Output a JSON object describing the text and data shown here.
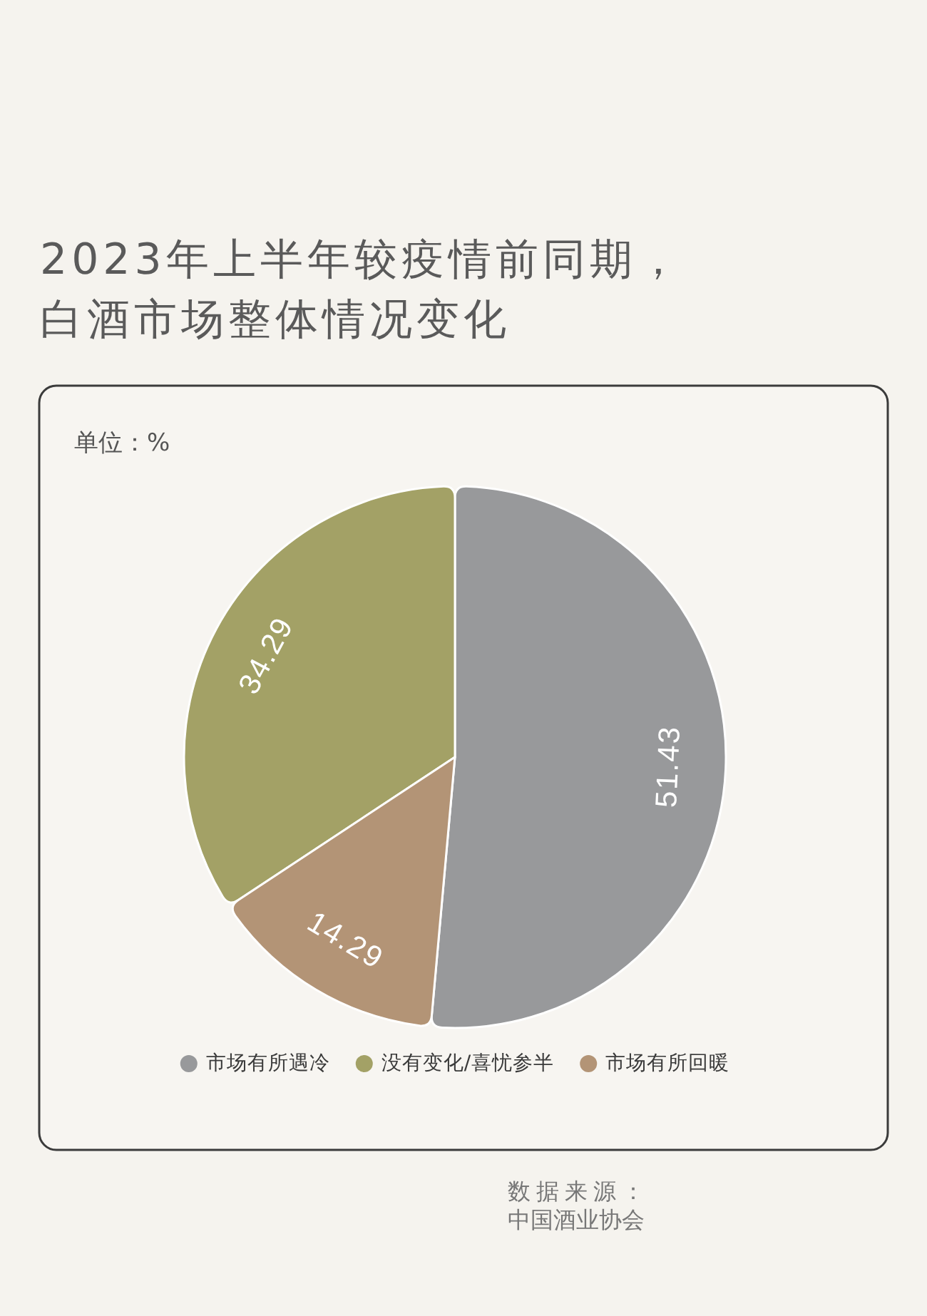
{
  "chart_data": {
    "type": "pie",
    "title": "2023年上半年较疫情前同期，白酒市场整体情况变化",
    "categories": [
      "市场有所遇冷",
      "没有变化/喜忧参半",
      "市场有所回暖"
    ],
    "values": [
      51.43,
      34.29,
      14.29
    ],
    "colors": [
      "#98999b",
      "#a3a166",
      "#b39476"
    ],
    "data_labels": true,
    "legend": "bottom",
    "annotations": [
      "单位：%",
      "数据来源：",
      "中国酒业协会"
    ]
  }
}
